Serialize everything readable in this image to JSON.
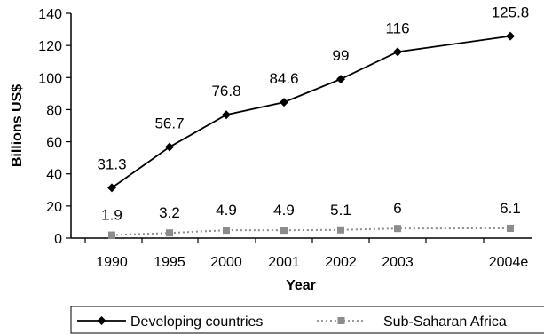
{
  "chart_data": {
    "type": "line",
    "categories": [
      "1990",
      "1995",
      "2000",
      "2001",
      "2002",
      "2003",
      "2004e"
    ],
    "series": [
      {
        "name": "Developing countries",
        "values": [
          31.3,
          56.7,
          76.8,
          84.6,
          99,
          116,
          125.8
        ],
        "labels": [
          "31.3",
          "56.7",
          "76.8",
          "84.6",
          "99",
          "116",
          "125.8"
        ],
        "color": "#000000",
        "line_style": "solid",
        "marker": "diamond"
      },
      {
        "name": "Sub-Saharan Africa",
        "values": [
          1.9,
          3.2,
          4.9,
          4.9,
          5.1,
          6,
          6.1
        ],
        "labels": [
          "1.9",
          "3.2",
          "4.9",
          "4.9",
          "5.1",
          "6",
          "6.1"
        ],
        "color": "#8c8c8c",
        "line_style": "dotted",
        "marker": "square"
      }
    ],
    "xlabel": "Year",
    "ylabel": "Billions US$",
    "ylim": [
      0,
      140
    ],
    "yticks": [
      0,
      20,
      40,
      60,
      80,
      100,
      120,
      140
    ],
    "legend_placement": "bottom",
    "grid": false
  }
}
